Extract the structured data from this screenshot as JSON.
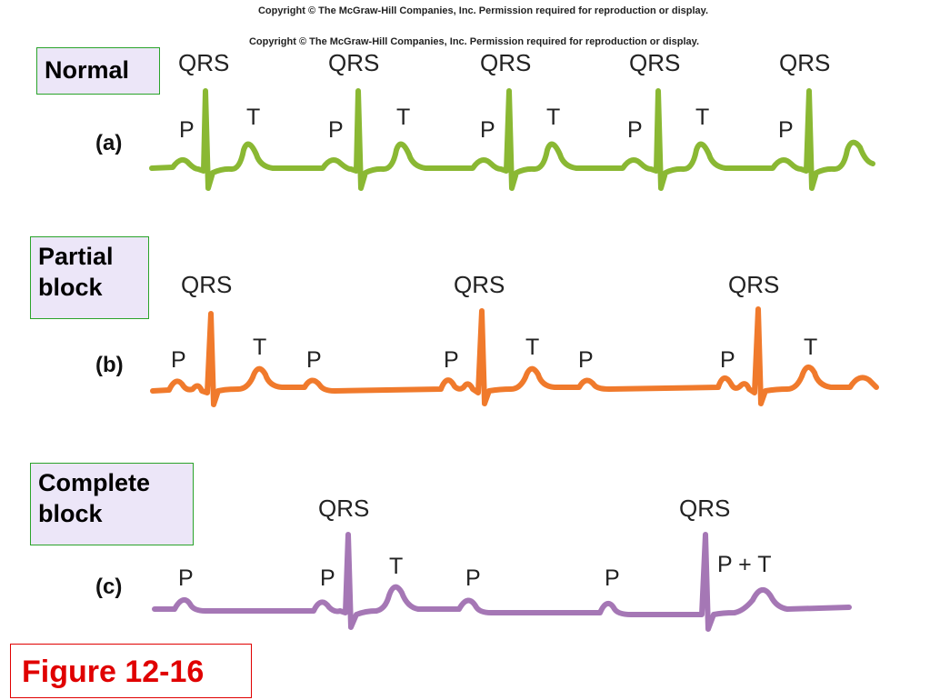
{
  "copyright_top": "Copyright © The McGraw-Hill Companies, Inc. Permission required for reproduction or display.",
  "copyright_second": "Copyright © The McGraw-Hill Companies, Inc. Permission required for reproduction or display.",
  "panels": {
    "a": {
      "letter": "(a)",
      "title": "Normal",
      "color": "#8ab833",
      "qrs_labels": [
        "QRS",
        "QRS",
        "QRS",
        "QRS",
        "QRS"
      ],
      "p_labels": [
        "P",
        "P",
        "P",
        "P",
        "P"
      ],
      "t_labels": [
        "T",
        "T",
        "T",
        "T"
      ]
    },
    "b": {
      "letter": "(b)",
      "title_line1": "Partial",
      "title_line2": "block",
      "color": "#f07a2c",
      "qrs_labels": [
        "QRS",
        "QRS",
        "QRS"
      ],
      "p_labels": [
        "P",
        "P",
        "P",
        "P",
        "P"
      ],
      "t_labels": [
        "T",
        "T",
        "T"
      ]
    },
    "c": {
      "letter": "(c)",
      "title_line1": "Complete",
      "title_line2": "block",
      "color": "#a577b5",
      "qrs_labels": [
        "QRS",
        "QRS"
      ],
      "p_labels": [
        "P",
        "P",
        "P",
        "P"
      ],
      "t_labels": [
        "T"
      ],
      "pt_label": "P + T"
    }
  },
  "figure_label": "Figure 12-16"
}
